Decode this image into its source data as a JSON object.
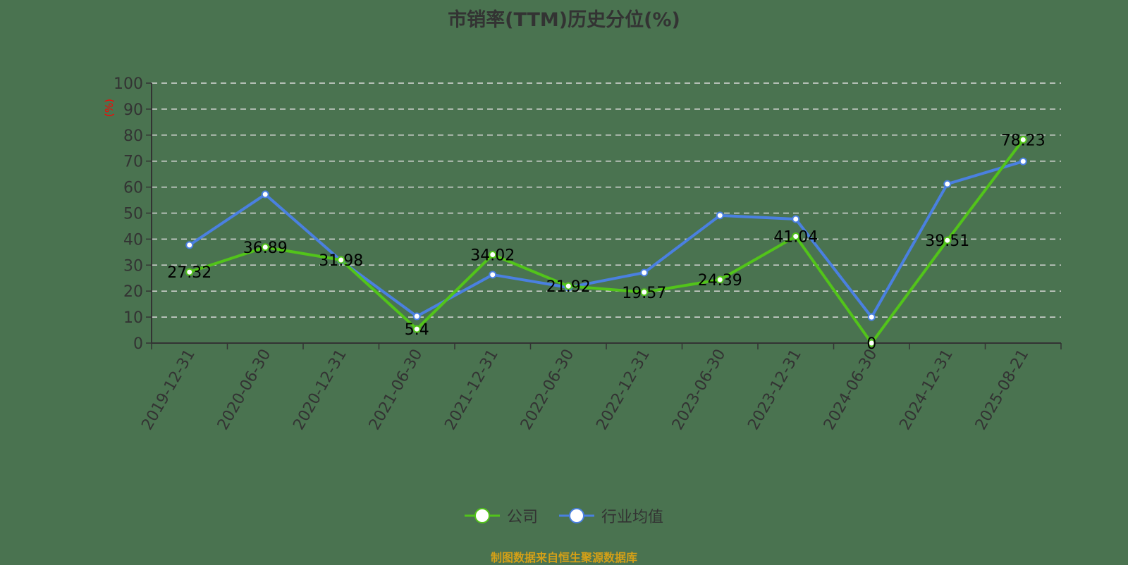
{
  "title": "市销率(TTM)历史分位(%)",
  "y_axis_unit": "(%)",
  "legend": {
    "company_label": "公司",
    "industry_label": "行业均值"
  },
  "footer": "制图数据来自恒生聚源数据库",
  "colors": {
    "background": "#4a7350",
    "company": "#52c41a",
    "industry": "#4a80e0",
    "axis_text": "#333333",
    "unit_text": "#ff0000",
    "grid": "#d9d9d9",
    "footer": "#d4a017"
  },
  "chart_data": {
    "type": "line",
    "title": "市销率(TTM)历史分位(%)",
    "xlabel": "",
    "ylabel": "(%)",
    "ylim": [
      0,
      100
    ],
    "yticks": [
      0,
      10,
      20,
      30,
      40,
      50,
      60,
      70,
      80,
      90,
      100
    ],
    "grid": true,
    "legend_position": "bottom",
    "categories": [
      "2019-12-31",
      "2020-06-30",
      "2020-12-31",
      "2021-06-30",
      "2021-12-31",
      "2022-06-30",
      "2022-12-31",
      "2023-06-30",
      "2023-12-31",
      "2024-06-30",
      "2024-12-31",
      "2025-08-21"
    ],
    "series": [
      {
        "name": "公司",
        "values": [
          27.32,
          36.89,
          31.98,
          5.4,
          34.02,
          21.92,
          19.57,
          24.39,
          41.04,
          0,
          39.51,
          78.23
        ],
        "labels": [
          "27.32",
          "36.89",
          "31.98",
          "5.4",
          "34.02",
          "21.92",
          "19.57",
          "24.39",
          "41.04",
          "0",
          "39.51",
          "78.23"
        ]
      },
      {
        "name": "行业均值",
        "values": [
          37.7,
          57.2,
          31.7,
          10.3,
          26.3,
          21.4,
          27.1,
          49.1,
          47.7,
          10.0,
          61.2,
          69.9
        ]
      }
    ]
  }
}
